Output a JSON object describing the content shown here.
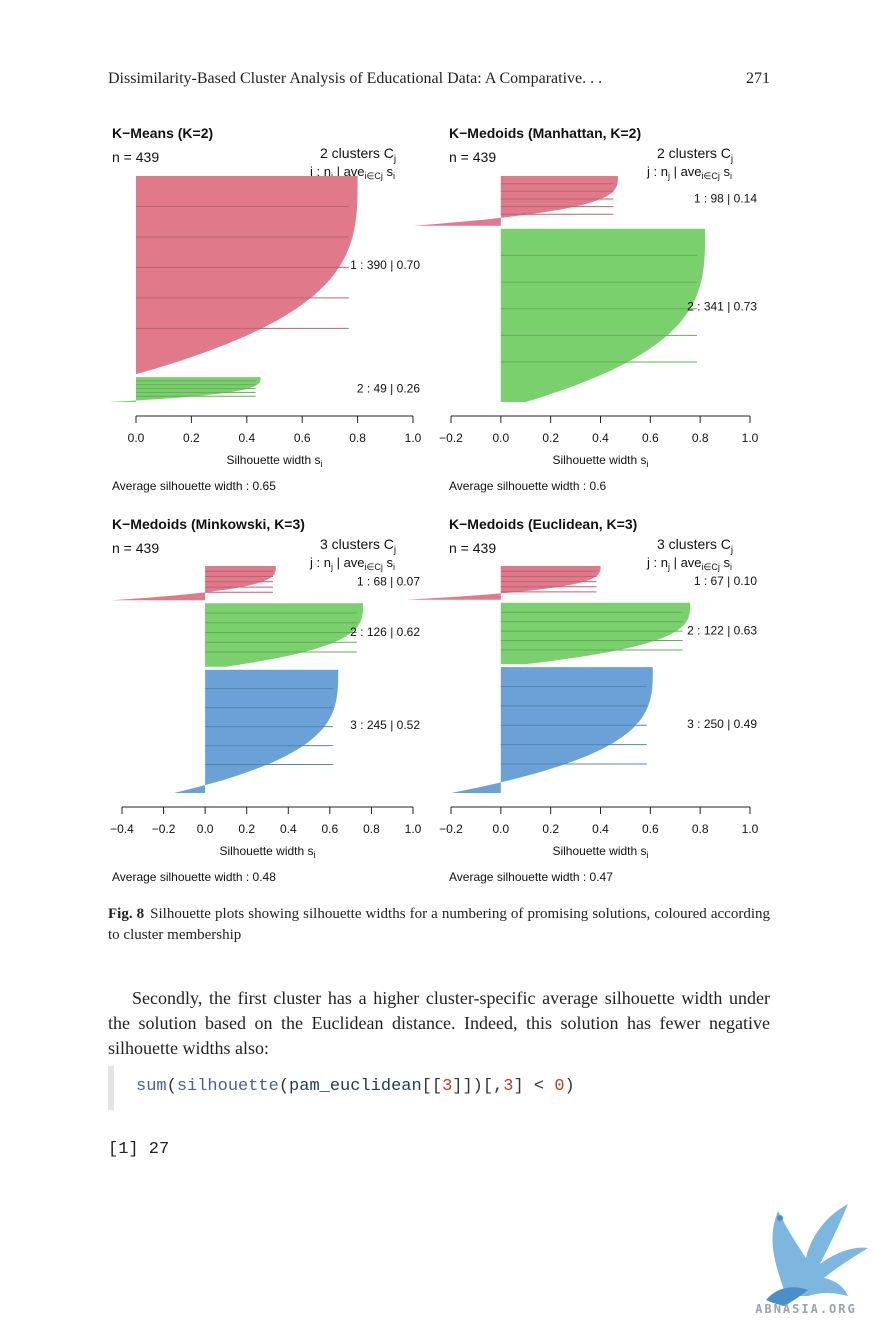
{
  "header": {
    "title": "Dissimilarity-Based Cluster Analysis of Educational Data: A Comparative. . .",
    "page_number": "271"
  },
  "chart_data": [
    {
      "type": "silhouette",
      "title": "K−Means (K=2)",
      "n_label": "n = 439",
      "clusters_label": "2  clusters  C",
      "clusters_sub": "j",
      "header_label": "j :  n",
      "header_mid": " | ave",
      "header_sub": "i∈Cj",
      "header_end": "  s",
      "xlabel": "Silhouette width s",
      "xlim": [
        0.0,
        1.0
      ],
      "ticks": [
        "0.0",
        "0.2",
        "0.4",
        "0.6",
        "0.8",
        "1.0"
      ],
      "tick_values": [
        0.0,
        0.2,
        0.4,
        0.6,
        0.8,
        1.0
      ],
      "average": "Average silhouette width :  0.65",
      "clusters": [
        {
          "id": 1,
          "n": 390,
          "avg": 0.7,
          "max": 0.8,
          "min": 0.0,
          "color": "#e07a8a",
          "label": "1 :   390  |  0.70"
        },
        {
          "id": 2,
          "n": 49,
          "avg": 0.26,
          "max": 0.45,
          "min": -0.1,
          "color": "#7bd06e",
          "label": "2 :   49  |  0.26"
        }
      ]
    },
    {
      "type": "silhouette",
      "title": "K−Medoids (Manhattan, K=2)",
      "n_label": "n = 439",
      "clusters_label": "2  clusters  C",
      "clusters_sub": "j",
      "header_label": "j :  n",
      "header_mid": " | ave",
      "header_sub": "i∈Cj",
      "header_end": "  s",
      "xlabel": "Silhouette width s",
      "xlim": [
        -0.2,
        1.0
      ],
      "ticks": [
        "−0.2",
        "0.0",
        "0.2",
        "0.4",
        "0.6",
        "0.8",
        "1.0"
      ],
      "tick_values": [
        -0.2,
        0.0,
        0.2,
        0.4,
        0.6,
        0.8,
        1.0
      ],
      "average": "Average silhouette width :  0.6",
      "clusters": [
        {
          "id": 1,
          "n": 98,
          "avg": 0.14,
          "max": 0.47,
          "min": -0.35,
          "color": "#e07a8a",
          "label": "1 :   98  |  0.14"
        },
        {
          "id": 2,
          "n": 341,
          "avg": 0.73,
          "max": 0.82,
          "min": 0.1,
          "color": "#7bd06e",
          "label": "2 :   341  |  0.73"
        }
      ]
    },
    {
      "type": "silhouette",
      "title": "K−Medoids (Minkowski, K=3)",
      "n_label": "n = 439",
      "clusters_label": "3  clusters  C",
      "clusters_sub": "j",
      "header_label": "j :  n",
      "header_mid": " | ave",
      "header_sub": "i∈Cj",
      "header_end": "  s",
      "xlabel": "Silhouette width s",
      "xlim": [
        -0.4,
        1.0
      ],
      "ticks": [
        "−0.4",
        "−0.2",
        "0.0",
        "0.2",
        "0.4",
        "0.6",
        "0.8",
        "1.0"
      ],
      "tick_values": [
        -0.4,
        -0.2,
        0.0,
        0.2,
        0.4,
        0.6,
        0.8,
        1.0
      ],
      "average": "Average silhouette width :  0.48",
      "clusters": [
        {
          "id": 1,
          "n": 68,
          "avg": 0.07,
          "max": 0.34,
          "min": -0.45,
          "color": "#e07a8a",
          "label": "1 :   68  |  0.07"
        },
        {
          "id": 2,
          "n": 126,
          "avg": 0.62,
          "max": 0.76,
          "min": 0.1,
          "color": "#7bd06e",
          "label": "2 :   126  |  0.62"
        },
        {
          "id": 3,
          "n": 245,
          "avg": 0.52,
          "max": 0.64,
          "min": -0.15,
          "color": "#6aa1d6",
          "label": "3 :   245  |  0.52"
        }
      ]
    },
    {
      "type": "silhouette",
      "title": "K−Medoids (Euclidean, K=3)",
      "n_label": "n = 439",
      "clusters_label": "3  clusters  C",
      "clusters_sub": "j",
      "header_label": "j :  n",
      "header_mid": " | ave",
      "header_sub": "i∈Cj",
      "header_end": "  s",
      "xlabel": "Silhouette width s",
      "xlim": [
        -0.2,
        1.0
      ],
      "ticks": [
        "−0.2",
        "0.0",
        "0.2",
        "0.4",
        "0.6",
        "0.8",
        "1.0"
      ],
      "tick_values": [
        -0.2,
        0.0,
        0.2,
        0.4,
        0.6,
        0.8,
        1.0
      ],
      "average": "Average silhouette width :  0.47",
      "clusters": [
        {
          "id": 1,
          "n": 67,
          "avg": 0.1,
          "max": 0.4,
          "min": -0.38,
          "color": "#e07a8a",
          "label": "1 :   67  |  0.10"
        },
        {
          "id": 2,
          "n": 122,
          "avg": 0.63,
          "max": 0.76,
          "min": 0.1,
          "color": "#7bd06e",
          "label": "2 :   122  |  0.63"
        },
        {
          "id": 3,
          "n": 250,
          "avg": 0.49,
          "max": 0.61,
          "min": -0.2,
          "color": "#6aa1d6",
          "label": "3 :   250  |  0.49"
        }
      ]
    }
  ],
  "caption": {
    "label": "Fig. 8",
    "text": "Silhouette plots showing silhouette widths for a numbering of promising solutions, coloured according to cluster membership"
  },
  "paragraph": "Secondly, the first cluster has a higher cluster-specific average silhouette width under the solution based on the Euclidean distance. Indeed, this solution has fewer negative silhouette widths also:",
  "code": {
    "fn1": "sum",
    "fn2": "silhouette",
    "var": "pam_euclidean",
    "num1": "3",
    "num2": "3",
    "num3": "0",
    "full": "sum(silhouette(pam_euclidean[[3]])[,3] < 0)"
  },
  "output": "[1] 27",
  "logo_text": "ABNASIA.ORG"
}
